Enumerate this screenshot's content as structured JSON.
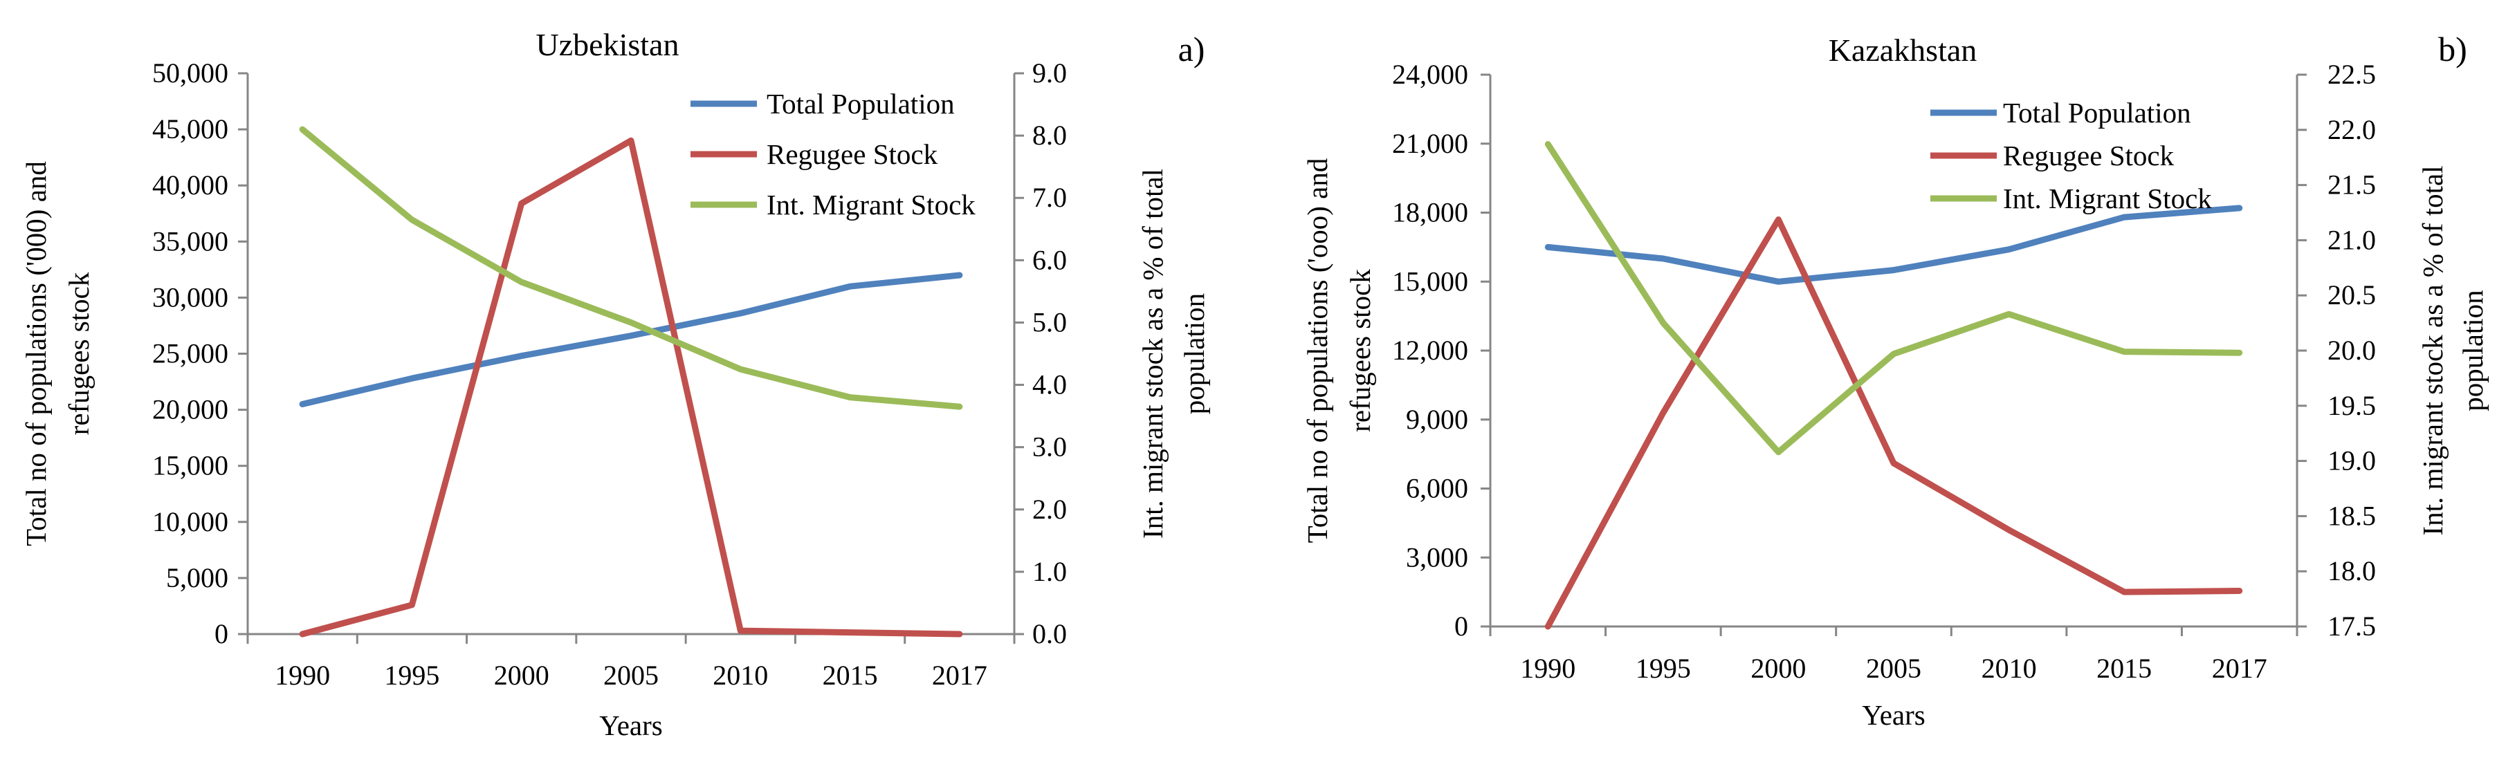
{
  "chart_data": [
    {
      "type": "line",
      "panel_label": "a)",
      "title": "Uzbekistan",
      "xlabel": "Years",
      "ylabel": [
        "Total no of populations ('000) and",
        "refugees stock"
      ],
      "y2label": [
        "Int. migrant stock as a % of total",
        "population"
      ],
      "categories": [
        "1990",
        "1995",
        "2000",
        "2005",
        "2010",
        "2015",
        "2017"
      ],
      "ylim": [
        0,
        50000
      ],
      "y_ticks": [
        "0",
        "5,000",
        "10,000",
        "15,000",
        "20,000",
        "25,000",
        "30,000",
        "35,000",
        "40,000",
        "45,000",
        "50,000"
      ],
      "y2lim": [
        0,
        9
      ],
      "y2_ticks": [
        "0.0",
        "1.0",
        "2.0",
        "3.0",
        "4.0",
        "5.0",
        "6.0",
        "7.0",
        "8.0",
        "9.0"
      ],
      "legend_position": "top-right",
      "grid": false,
      "series": [
        {
          "name": "Total Population",
          "axis": "left",
          "color": "#4f81bd",
          "values": [
            20500,
            22800,
            24800,
            26600,
            28600,
            31000,
            32000
          ]
        },
        {
          "name": "Regugee Stock",
          "axis": "left",
          "color": "#c0504d",
          "values": [
            0,
            2600,
            38400,
            44000,
            300,
            150,
            0
          ]
        },
        {
          "name": "Int. Migrant Stock",
          "axis": "right",
          "color": "#9bbb59",
          "values": [
            8.1,
            6.65,
            5.65,
            5.0,
            4.25,
            3.8,
            3.65
          ]
        }
      ]
    },
    {
      "type": "line",
      "panel_label": "b)",
      "title": "Kazakhstan",
      "xlabel": "Years",
      "ylabel": [
        "Total no of populations ('ooo) and",
        "refugees stock"
      ],
      "y2label": [
        "Int. migrant stock as a % of total",
        "population"
      ],
      "categories": [
        "1990",
        "1995",
        "2000",
        "2005",
        "2010",
        "2015",
        "2017"
      ],
      "ylim": [
        0,
        24000
      ],
      "y_ticks": [
        "0",
        "3,000",
        "6,000",
        "9,000",
        "12,000",
        "15,000",
        "18,000",
        "21,000",
        "24,000"
      ],
      "y2lim": [
        17.5,
        22.5
      ],
      "y2_ticks": [
        "17.5",
        "18.0",
        "18.5",
        "19.0",
        "19.5",
        "20.0",
        "20.5",
        "21.0",
        "21.5",
        "22.0",
        "22.5"
      ],
      "legend_position": "top-right",
      "grid": false,
      "series": [
        {
          "name": "Total Population",
          "axis": "left",
          "color": "#4f81bd",
          "values": [
            16500,
            16000,
            15000,
            15500,
            16400,
            17800,
            18200
          ]
        },
        {
          "name": "Regugee Stock",
          "axis": "left",
          "color": "#c0504d",
          "values": [
            0,
            9300,
            17700,
            7100,
            4200,
            1500,
            1550
          ]
        },
        {
          "name": "Int. Migrant Stock",
          "axis": "right",
          "color": "#9bbb59",
          "values": [
            21.87,
            20.25,
            19.08,
            19.97,
            20.33,
            19.99,
            19.98
          ]
        }
      ]
    }
  ]
}
